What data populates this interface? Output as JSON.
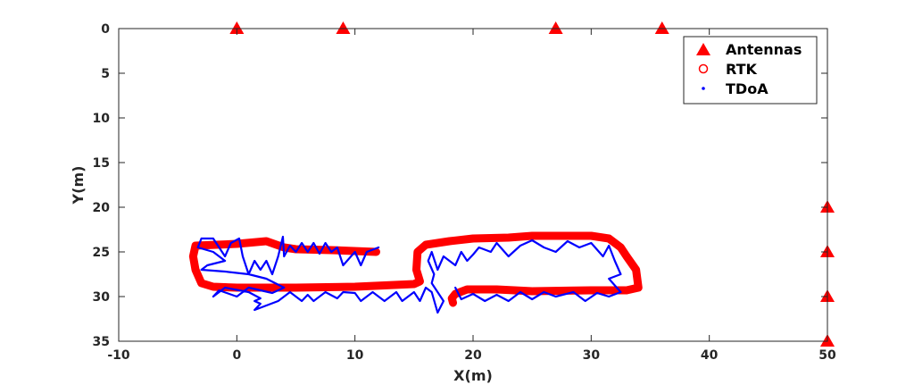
{
  "chart_data": {
    "type": "scatter",
    "title": "",
    "xlabel": "X(m)",
    "ylabel": "Y(m)",
    "xlim": [
      -10,
      50
    ],
    "ylim": [
      0,
      35
    ],
    "y_reversed": true,
    "grid": false,
    "legend_position": "top-right",
    "x_ticks": [
      -10,
      0,
      10,
      20,
      30,
      40,
      50
    ],
    "y_ticks": [
      0,
      5,
      10,
      15,
      20,
      25,
      30,
      35
    ],
    "series": [
      {
        "name": "Antennas",
        "marker": "filled-triangle",
        "color": "#ff0000",
        "points": [
          [
            0,
            0
          ],
          [
            9,
            0
          ],
          [
            27,
            0
          ],
          [
            36,
            0
          ],
          [
            50,
            20
          ],
          [
            50,
            25
          ],
          [
            50,
            30
          ],
          [
            50,
            35
          ]
        ]
      },
      {
        "name": "RTK",
        "marker": "circle",
        "color": "#ff0000",
        "path": [
          [
            11.8,
            25.0
          ],
          [
            8.0,
            24.8
          ],
          [
            5.0,
            24.7
          ],
          [
            4.0,
            24.5
          ],
          [
            2.5,
            23.8
          ],
          [
            0,
            24.1
          ],
          [
            -3.5,
            24.3
          ],
          [
            -3.7,
            25.5
          ],
          [
            -3.5,
            27.0
          ],
          [
            -3.0,
            28.5
          ],
          [
            -2.0,
            28.9
          ],
          [
            0,
            29.0
          ],
          [
            5.0,
            29.0
          ],
          [
            10.0,
            28.9
          ],
          [
            15.0,
            28.6
          ],
          [
            15.5,
            28.3
          ],
          [
            15.2,
            27.0
          ],
          [
            15.3,
            25.0
          ],
          [
            16.0,
            24.2
          ],
          [
            18.0,
            23.8
          ],
          [
            20.0,
            23.5
          ],
          [
            23.0,
            23.4
          ],
          [
            25.0,
            23.2
          ],
          [
            30.0,
            23.2
          ],
          [
            31.5,
            23.5
          ],
          [
            32.5,
            24.5
          ],
          [
            33.0,
            25.5
          ],
          [
            33.8,
            27.0
          ],
          [
            34.0,
            29.0
          ],
          [
            33.0,
            29.3
          ],
          [
            30.0,
            29.3
          ],
          [
            25.0,
            29.4
          ],
          [
            22.0,
            29.2
          ],
          [
            19.5,
            29.2
          ],
          [
            18.5,
            29.7
          ],
          [
            18.2,
            30.2
          ],
          [
            18.3,
            30.7
          ]
        ]
      },
      {
        "name": "TDoA",
        "marker": "dot",
        "color": "#0000ff",
        "path": [
          [
            12.0,
            24.5
          ],
          [
            11.0,
            25.0
          ],
          [
            10.5,
            26.5
          ],
          [
            10.0,
            25.0
          ],
          [
            9.0,
            26.5
          ],
          [
            8.5,
            24.5
          ],
          [
            8.0,
            25.0
          ],
          [
            7.5,
            24.0
          ],
          [
            7.0,
            25.2
          ],
          [
            6.5,
            24.0
          ],
          [
            6.0,
            25.0
          ],
          [
            5.5,
            24.0
          ],
          [
            5.0,
            25.0
          ],
          [
            4.5,
            24.3
          ],
          [
            4.0,
            25.5
          ],
          [
            3.9,
            23.3
          ],
          [
            3.5,
            25.5
          ],
          [
            3.0,
            27.5
          ],
          [
            2.5,
            26.0
          ],
          [
            2.0,
            27.0
          ],
          [
            1.5,
            26.0
          ],
          [
            1.0,
            27.5
          ],
          [
            0.5,
            25.5
          ],
          [
            0.2,
            23.5
          ],
          [
            -0.5,
            24.0
          ],
          [
            -1.0,
            25.5
          ],
          [
            -1.5,
            24.5
          ],
          [
            -2.0,
            23.5
          ],
          [
            -3.0,
            23.5
          ],
          [
            -3.3,
            24.5
          ],
          [
            -2.0,
            25.0
          ],
          [
            -1.0,
            26.0
          ],
          [
            -2.5,
            26.5
          ],
          [
            -3.0,
            27.0
          ],
          [
            -1.0,
            27.2
          ],
          [
            1.0,
            27.5
          ],
          [
            2.5,
            28.0
          ],
          [
            4.0,
            29.0
          ],
          [
            3.0,
            29.6
          ],
          [
            1.0,
            29.0
          ],
          [
            0.0,
            30.0
          ],
          [
            -1.5,
            29.3
          ],
          [
            -2.0,
            30.0
          ],
          [
            -1.0,
            29.0
          ],
          [
            1.0,
            29.5
          ],
          [
            2.0,
            30.2
          ],
          [
            1.5,
            30.5
          ],
          [
            2.0,
            30.8
          ],
          [
            1.5,
            31.5
          ],
          [
            2.5,
            31.0
          ],
          [
            3.5,
            30.5
          ],
          [
            4.5,
            29.5
          ],
          [
            5.5,
            30.5
          ],
          [
            6.0,
            29.8
          ],
          [
            6.5,
            30.5
          ],
          [
            7.5,
            29.5
          ],
          [
            8.5,
            30.2
          ],
          [
            9.0,
            29.5
          ],
          [
            10.0,
            29.6
          ],
          [
            10.5,
            30.5
          ],
          [
            11.5,
            29.5
          ],
          [
            12.5,
            30.5
          ],
          [
            13.5,
            29.5
          ],
          [
            14.0,
            30.5
          ],
          [
            15.0,
            29.5
          ],
          [
            15.5,
            30.5
          ],
          [
            16.0,
            29.0
          ],
          [
            16.5,
            29.5
          ],
          [
            17.0,
            31.8
          ],
          [
            17.5,
            30.5
          ],
          [
            16.5,
            28.5
          ],
          [
            16.7,
            27.5
          ],
          [
            16.2,
            26.0
          ],
          [
            16.5,
            25.0
          ],
          [
            17.0,
            27.0
          ],
          [
            17.5,
            25.5
          ],
          [
            18.5,
            26.5
          ],
          [
            19.0,
            25.0
          ],
          [
            19.5,
            26.0
          ],
          [
            20.0,
            25.3
          ],
          [
            20.5,
            24.5
          ],
          [
            21.5,
            25.0
          ],
          [
            22.0,
            24.0
          ],
          [
            23.0,
            25.5
          ],
          [
            24.0,
            24.3
          ],
          [
            25.0,
            23.7
          ],
          [
            26.0,
            24.5
          ],
          [
            27.0,
            25.0
          ],
          [
            28.0,
            23.8
          ],
          [
            29.0,
            24.5
          ],
          [
            30.0,
            24.0
          ],
          [
            31.0,
            25.5
          ],
          [
            31.5,
            24.3
          ],
          [
            32.0,
            26.0
          ],
          [
            32.5,
            27.5
          ],
          [
            31.5,
            28.0
          ],
          [
            32.5,
            29.5
          ],
          [
            31.5,
            30.0
          ],
          [
            30.5,
            29.6
          ],
          [
            29.5,
            30.5
          ],
          [
            28.5,
            29.5
          ],
          [
            27.0,
            30.0
          ],
          [
            26.0,
            29.5
          ],
          [
            25.0,
            30.3
          ],
          [
            24.0,
            29.5
          ],
          [
            23.0,
            30.5
          ],
          [
            22.0,
            29.8
          ],
          [
            21.0,
            30.5
          ],
          [
            20.0,
            29.7
          ],
          [
            19.0,
            30.3
          ],
          [
            18.5,
            29.0
          ]
        ]
      }
    ]
  }
}
